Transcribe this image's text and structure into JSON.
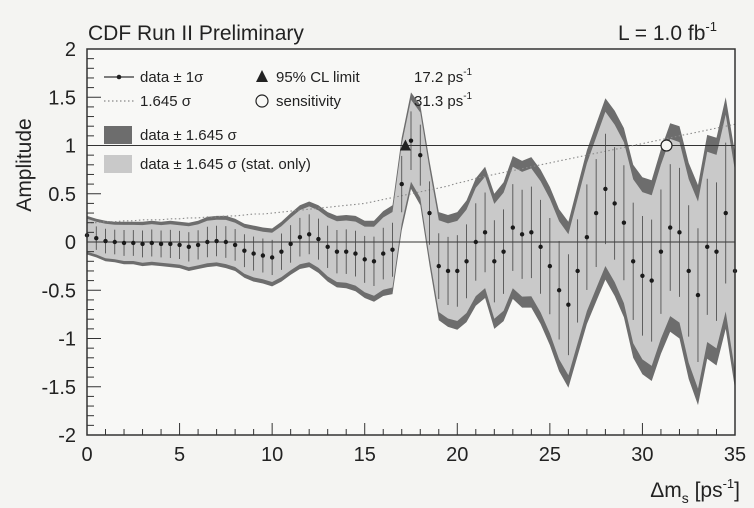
{
  "chart_data": {
    "type": "line",
    "title": "CDF Run II Preliminary",
    "luminosity": {
      "label": "L = 1.0 fb",
      "sup": "-1"
    },
    "xlabel": {
      "main": "Δm",
      "sub": "s",
      "unit": " [ps",
      "sup": "-1",
      "close": "]"
    },
    "ylabel": "Amplitude",
    "xlim": [
      0,
      35
    ],
    "ylim": [
      -2,
      2
    ],
    "x_ticks": [
      0,
      5,
      10,
      15,
      20,
      25,
      30,
      35
    ],
    "y_ticks": [
      2,
      1.5,
      1,
      0.5,
      0,
      -0.5,
      -1,
      -1.5,
      -2
    ],
    "reference_lines": [
      0,
      1
    ],
    "legend": [
      {
        "label": "data ± 1σ",
        "marker": "point-errorbar"
      },
      {
        "label": "1.645 σ",
        "marker": "dotted-line"
      },
      {
        "label": "data ± 1.645 σ",
        "marker": "dark-band"
      },
      {
        "label": "data ± 1.645 σ (stat. only)",
        "marker": "light-band"
      }
    ],
    "limits": [
      {
        "label": "95% CL limit",
        "value_text": "17.2 ps",
        "sup": "-1",
        "marker": "triangle",
        "value": 17.2
      },
      {
        "label": "sensitivity",
        "value_text": "31.3 ps",
        "sup": "-1",
        "marker": "open-circle",
        "value": 31.3
      }
    ],
    "x": [
      0,
      0.5,
      1,
      1.5,
      2,
      2.5,
      3,
      3.5,
      4,
      4.5,
      5,
      5.5,
      6,
      6.5,
      7,
      7.5,
      8,
      8.5,
      9,
      9.5,
      10,
      10.5,
      11,
      11.5,
      12,
      12.5,
      13,
      13.5,
      14,
      14.5,
      15,
      15.5,
      16,
      16.5,
      17,
      17.5,
      18,
      18.5,
      19,
      19.5,
      20,
      20.5,
      21,
      21.5,
      22,
      22.5,
      23,
      23.5,
      24,
      24.5,
      25,
      25.5,
      26,
      26.5,
      27,
      27.5,
      28,
      28.5,
      29,
      29.5,
      30,
      30.5,
      31,
      31.5,
      32,
      32.5,
      33,
      33.5,
      34,
      34.5,
      35
    ],
    "amplitude": [
      0.07,
      0.04,
      0.01,
      0,
      -0.01,
      -0.01,
      -0.02,
      -0.01,
      -0.02,
      -0.02,
      -0.03,
      -0.05,
      -0.03,
      0,
      0.01,
      0,
      -0.03,
      -0.09,
      -0.12,
      -0.14,
      -0.16,
      -0.1,
      -0.02,
      0.05,
      0.08,
      0.03,
      -0.05,
      -0.1,
      -0.1,
      -0.12,
      -0.18,
      -0.2,
      -0.12,
      -0.08,
      0.6,
      1.05,
      0.9,
      0.3,
      -0.25,
      -0.3,
      -0.3,
      -0.2,
      0,
      0.1,
      -0.2,
      -0.1,
      0.15,
      0.08,
      0.1,
      -0.05,
      -0.25,
      -0.5,
      -0.65,
      -0.3,
      0.05,
      0.3,
      0.55,
      0.4,
      0.2,
      -0.2,
      -0.35,
      -0.4,
      -0.1,
      0.15,
      0.1,
      -0.3,
      -0.55,
      -0.05,
      -0.1,
      0.3,
      -0.3
    ],
    "sigma_1645": [
      0.2,
      0.2,
      0.21,
      0.21,
      0.22,
      0.22,
      0.23,
      0.23,
      0.23,
      0.24,
      0.24,
      0.25,
      0.25,
      0.26,
      0.26,
      0.27,
      0.27,
      0.28,
      0.29,
      0.29,
      0.3,
      0.31,
      0.32,
      0.33,
      0.34,
      0.35,
      0.36,
      0.37,
      0.38,
      0.39,
      0.4,
      0.42,
      0.44,
      0.46,
      0.48,
      0.5,
      0.52,
      0.54,
      0.56,
      0.58,
      0.61,
      0.63,
      0.66,
      0.68,
      0.7,
      0.72,
      0.74,
      0.76,
      0.78,
      0.8,
      0.82,
      0.84,
      0.86,
      0.88,
      0.9,
      0.92,
      0.94,
      0.96,
      0.98,
      1,
      1.02,
      1.04,
      1.06,
      1.08,
      1.1,
      1.12,
      1.14,
      1.16,
      1.18,
      1.2,
      1.22
    ]
  }
}
